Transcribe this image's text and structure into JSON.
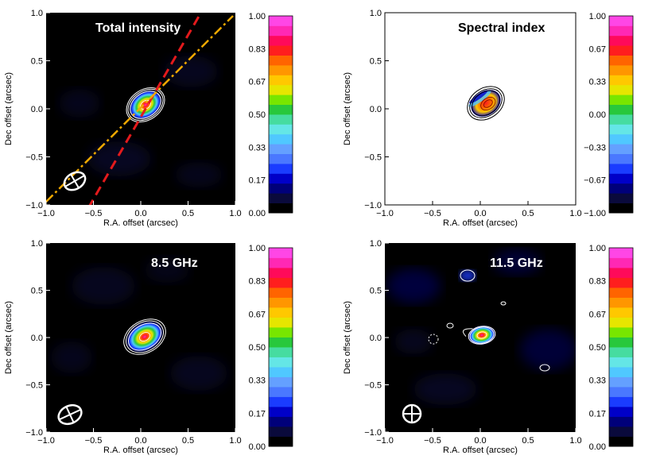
{
  "figure": {
    "panels": [
      {
        "id": "total",
        "title": "Total intensity",
        "title_color": "#ffffff",
        "background": "#000000",
        "xlabel": "R.A. offset (arcsec)",
        "ylabel": "Dec offset (arcsec)",
        "xticks": [
          "−1.0",
          "−0.5",
          "0.0",
          "0.5",
          "1.0"
        ],
        "yticks": [
          "1.0",
          "0.5",
          "0.0",
          "−0.5",
          "−1.0"
        ]
      },
      {
        "id": "spectral",
        "title": "Spectral index",
        "title_color": "#000000",
        "background": "#ffffff",
        "xlabel": "R.A. offset (arcsec)",
        "ylabel": "Dec offset (arcsec)",
        "xticks": [
          "−1.0",
          "−0.5",
          "0.0",
          "0.5",
          "1.0"
        ],
        "yticks": [
          "1.0",
          "0.5",
          "0.0",
          "−0.5",
          "−1.0"
        ]
      },
      {
        "id": "ghz85",
        "title": "8.5 GHz",
        "title_color": "#ffffff",
        "background": "#000000",
        "xlabel": "R.A. offset (arcsec)",
        "ylabel": "Dec offset (arcsec)",
        "xticks": [
          "−1.0",
          "−0.5",
          "0.0",
          "0.5",
          "1.0"
        ],
        "yticks": [
          "1.0",
          "0.5",
          "0.0",
          "−0.5",
          "−1.0"
        ]
      },
      {
        "id": "ghz115",
        "title": "11.5 GHz",
        "title_color": "#ffffff",
        "background": "#000000",
        "xlabel": "R.A. offset (arcsec)",
        "ylabel": "Dec offset (arcsec)",
        "xticks": [
          "−1.0",
          "−0.5",
          "0.0",
          "0.5",
          "1.0"
        ],
        "yticks": [
          "1.0",
          "0.5",
          "0.0",
          "−0.5",
          "−1.0"
        ]
      }
    ],
    "colorbars": [
      {
        "id": "cb-total",
        "labels": [
          "1.00",
          "0.83",
          "0.67",
          "0.50",
          "0.33",
          "0.17",
          "0.00"
        ]
      },
      {
        "id": "cb-spectral",
        "labels": [
          "1.00",
          "0.67",
          "0.33",
          "0.00",
          "−0.33",
          "−0.67",
          "−1.00"
        ]
      },
      {
        "id": "cb-ghz85",
        "labels": [
          "1.00",
          "0.83",
          "0.67",
          "0.50",
          "0.33",
          "0.17",
          "0.00"
        ]
      },
      {
        "id": "cb-ghz115",
        "labels": [
          "1.00",
          "0.83",
          "0.67",
          "0.50",
          "0.33",
          "0.17",
          "0.00"
        ]
      }
    ],
    "colormap": [
      "#000000",
      "#0a0a3c",
      "#00007a",
      "#0000c8",
      "#1a3cff",
      "#4a78ff",
      "#64a0ff",
      "#50c8ff",
      "#64e6e6",
      "#46dca0",
      "#28c83c",
      "#78e600",
      "#e6e600",
      "#ffc800",
      "#ff9600",
      "#ff6400",
      "#ff1e1e",
      "#ff0a5a",
      "#ff28b4",
      "#ff46e6"
    ],
    "overlay_lines": {
      "red_dash": "#e41a1c",
      "orange_dashdot": "#f2a900"
    }
  },
  "chart_data": [
    {
      "type": "heatmap",
      "title": "Total intensity",
      "xlabel": "R.A. offset (arcsec)",
      "ylabel": "Dec offset (arcsec)",
      "xlim": [
        -1.0,
        1.0
      ],
      "ylim": [
        -1.0,
        1.0
      ],
      "colorbar": {
        "min": 0.0,
        "max": 1.0,
        "ticks": [
          0.0,
          0.17,
          0.33,
          0.5,
          0.67,
          0.83,
          1.0
        ]
      },
      "source": {
        "x": 0.05,
        "y": 0.02,
        "peak": 1.0,
        "major_arcsec": 0.18,
        "minor_arcsec": 0.13,
        "pa_deg": -35
      },
      "contours": [
        {
          "major_arcsec": 0.17,
          "minor_arcsec": 0.12
        },
        {
          "major_arcsec": 0.19,
          "minor_arcsec": 0.14
        },
        {
          "major_arcsec": 0.21,
          "minor_arcsec": 0.16
        }
      ],
      "lines": [
        {
          "style": "dashed",
          "color": "red",
          "from": [
            -0.55,
            -1.05
          ],
          "to": [
            0.65,
            1.05
          ]
        },
        {
          "style": "dash-dot",
          "color": "orange",
          "from": [
            -1.0,
            -1.0
          ],
          "to": [
            0.97,
            0.93
          ]
        }
      ],
      "beam": {
        "x": -0.7,
        "y": -0.8,
        "major_arcsec": 0.12,
        "minor_arcsec": 0.09,
        "pa_deg": -30
      }
    },
    {
      "type": "heatmap",
      "title": "Spectral index",
      "xlabel": "R.A. offset (arcsec)",
      "ylabel": "Dec offset (arcsec)",
      "xlim": [
        -1.0,
        1.0
      ],
      "ylim": [
        -1.0,
        1.0
      ],
      "colorbar": {
        "min": -1.0,
        "max": 1.0,
        "ticks": [
          -1.0,
          -0.67,
          -0.33,
          0.0,
          0.33,
          0.67,
          1.0
        ]
      },
      "source": {
        "x": 0.03,
        "y": 0.02,
        "major_arcsec": 0.17,
        "minor_arcsec": 0.13,
        "pa_deg": -35
      },
      "contours": [
        {
          "major_arcsec": 0.16,
          "minor_arcsec": 0.11
        },
        {
          "major_arcsec": 0.18,
          "minor_arcsec": 0.13
        },
        {
          "major_arcsec": 0.2,
          "minor_arcsec": 0.15
        }
      ]
    },
    {
      "type": "heatmap",
      "title": "8.5 GHz",
      "xlabel": "R.A. offset (arcsec)",
      "ylabel": "Dec offset (arcsec)",
      "xlim": [
        -1.0,
        1.0
      ],
      "ylim": [
        -1.0,
        1.0
      ],
      "colorbar": {
        "min": 0.0,
        "max": 1.0,
        "ticks": [
          0.0,
          0.17,
          0.33,
          0.5,
          0.67,
          0.83,
          1.0
        ]
      },
      "source": {
        "x": 0.05,
        "y": 0.0,
        "peak": 1.0,
        "major_arcsec": 0.19,
        "minor_arcsec": 0.13,
        "pa_deg": -30
      },
      "contours": [
        {
          "major_arcsec": 0.18,
          "minor_arcsec": 0.12
        },
        {
          "major_arcsec": 0.21,
          "minor_arcsec": 0.14
        },
        {
          "major_arcsec": 0.23,
          "minor_arcsec": 0.16
        }
      ],
      "beam": {
        "x": -0.73,
        "y": -0.82,
        "major_arcsec": 0.13,
        "minor_arcsec": 0.1,
        "pa_deg": -25
      }
    },
    {
      "type": "heatmap",
      "title": "11.5 GHz",
      "xlabel": "R.A. offset (arcsec)",
      "ylabel": "Dec offset (arcsec)",
      "xlim": [
        -1.0,
        1.0
      ],
      "ylim": [
        -1.0,
        1.0
      ],
      "colorbar": {
        "min": 0.0,
        "max": 1.0,
        "ticks": [
          0.0,
          0.17,
          0.33,
          0.5,
          0.67,
          0.83,
          1.0
        ]
      },
      "source": {
        "x": 0.05,
        "y": 0.02,
        "peak": 1.0,
        "major_arcsec": 0.13,
        "minor_arcsec": 0.09,
        "pa_deg": -10
      },
      "contours": [
        {
          "major_arcsec": 0.12,
          "minor_arcsec": 0.08
        },
        {
          "major_arcsec": 0.14,
          "minor_arcsec": 0.09
        }
      ],
      "secondary_contours": [
        {
          "x": -0.13,
          "y": 0.68,
          "r_arcsec": 0.07
        },
        {
          "x": 0.27,
          "y": 0.36,
          "r_arcsec": 0.02
        },
        {
          "x": -0.32,
          "y": 0.14,
          "r_arcsec": 0.03
        },
        {
          "x": 0.72,
          "y": -0.31,
          "r_arcsec": 0.04
        }
      ],
      "negative_contours": [
        {
          "x": -0.47,
          "y": -0.02,
          "r_arcsec": 0.05
        }
      ],
      "beam": {
        "x": -0.7,
        "y": -0.8,
        "major_arcsec": 0.1,
        "minor_arcsec": 0.1,
        "pa_deg": 0
      }
    }
  ]
}
